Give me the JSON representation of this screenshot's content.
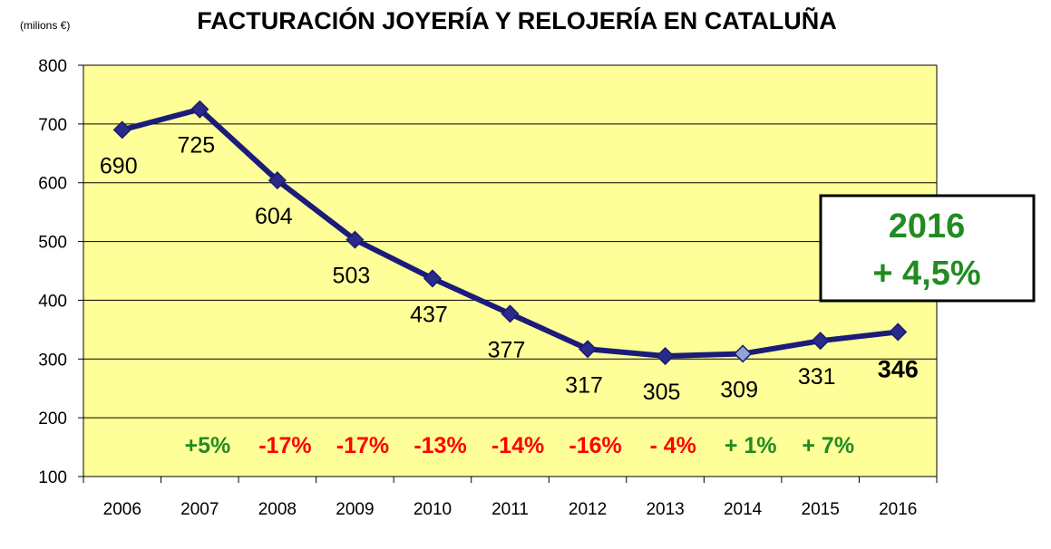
{
  "chart_data": {
    "type": "line",
    "title": "FACTURACIÓN JOYERÍA Y RELOJERÍA  EN CATALUÑA",
    "unit_label": "(milions €)",
    "categories": [
      "2006",
      "2007",
      "2008",
      "2009",
      "2010",
      "2011",
      "2012",
      "2013",
      "2014",
      "2015",
      "2016"
    ],
    "series": [
      {
        "values": [
          690,
          725,
          604,
          503,
          437,
          377,
          317,
          305,
          309,
          331,
          346
        ],
        "color": "#1b1b7a"
      }
    ],
    "data_labels": [
      "690",
      "725",
      "604",
      "503",
      "437",
      "377",
      "317",
      "305",
      "309",
      "331",
      "346"
    ],
    "ylim": [
      100,
      800
    ],
    "yticks": [
      "100",
      "200",
      "300",
      "400",
      "500",
      "600",
      "700",
      "800"
    ],
    "grid": true,
    "plot_background": "#ffff99",
    "change_labels": [
      {
        "text": "+5%",
        "color": "#228b22"
      },
      {
        "text": "-17%",
        "color": "#ff0000"
      },
      {
        "text": "-17%",
        "color": "#ff0000"
      },
      {
        "text": "-13%",
        "color": "#ff0000"
      },
      {
        "text": "-14%",
        "color": "#ff0000"
      },
      {
        "text": "-16%",
        "color": "#ff0000"
      },
      {
        "text": "- 4%",
        "color": "#ff0000"
      },
      {
        "text": "+ 1%",
        "color": "#228b22"
      },
      {
        "text": "+ 7%",
        "color": "#228b22"
      }
    ],
    "highlight_box": {
      "line1": "2016",
      "line2": "+ 4,5%",
      "color": "#228b22"
    }
  }
}
